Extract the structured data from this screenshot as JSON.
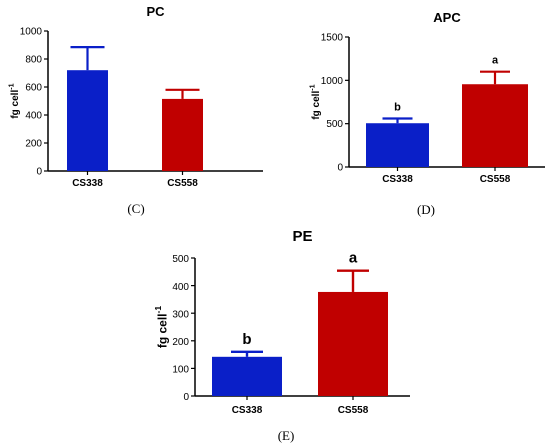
{
  "colors": {
    "cs338": "#0a1fc8",
    "cs558": "#c00000"
  },
  "chart_data": [
    {
      "type": "bar",
      "title": "PC",
      "panel_label": "(C)",
      "ylabel": "fg cell",
      "ylabel_sup": "-1",
      "categories": [
        "CS338",
        "CS558"
      ],
      "values": [
        720,
        515
      ],
      "errors": [
        165,
        65
      ],
      "letters": [
        "",
        ""
      ],
      "ylim": [
        0,
        1000
      ],
      "yticks": [
        0,
        200,
        400,
        600,
        800,
        1000
      ],
      "grid": false
    },
    {
      "type": "bar",
      "title": "APC",
      "panel_label": "(D)",
      "ylabel": "fg cell",
      "ylabel_sup": "-1",
      "categories": [
        "CS338",
        "CS558"
      ],
      "values": [
        505,
        955
      ],
      "errors": [
        55,
        145
      ],
      "letters": [
        "b",
        "a"
      ],
      "ylim": [
        0,
        1500
      ],
      "yticks": [
        0,
        500,
        1000,
        1500
      ],
      "grid": false
    },
    {
      "type": "bar",
      "title": "PE",
      "panel_label": "(E)",
      "ylabel": "fg cell",
      "ylabel_sup": "-1",
      "categories": [
        "CS338",
        "CS558"
      ],
      "values": [
        142,
        377
      ],
      "errors": [
        18,
        77
      ],
      "letters": [
        "b",
        "a"
      ],
      "ylim": [
        0,
        500
      ],
      "yticks": [
        0,
        100,
        200,
        300,
        400,
        500
      ],
      "grid": false
    }
  ]
}
